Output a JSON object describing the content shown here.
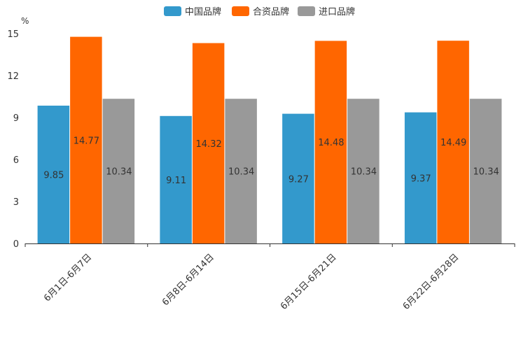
{
  "chart_data": {
    "type": "bar",
    "title": "",
    "xlabel": "",
    "ylabel": "%",
    "ylim": [
      0,
      15
    ],
    "yticks": [
      0,
      3,
      6,
      9,
      12,
      15
    ],
    "categories": [
      "6月1日-6月7日",
      "6月8日-6月14日",
      "6月15日-6月21日",
      "6月22日-6月28日"
    ],
    "series": [
      {
        "name": "中国品牌",
        "color": "#3399cc",
        "values": [
          9.85,
          9.11,
          9.27,
          9.37
        ]
      },
      {
        "name": "合资品牌",
        "color": "#ff6600",
        "values": [
          14.77,
          14.32,
          14.48,
          14.49
        ]
      },
      {
        "name": "进口品牌",
        "color": "#999999",
        "values": [
          10.34,
          10.34,
          10.34,
          10.34
        ]
      }
    ],
    "legend": "top-center",
    "grid": false
  }
}
